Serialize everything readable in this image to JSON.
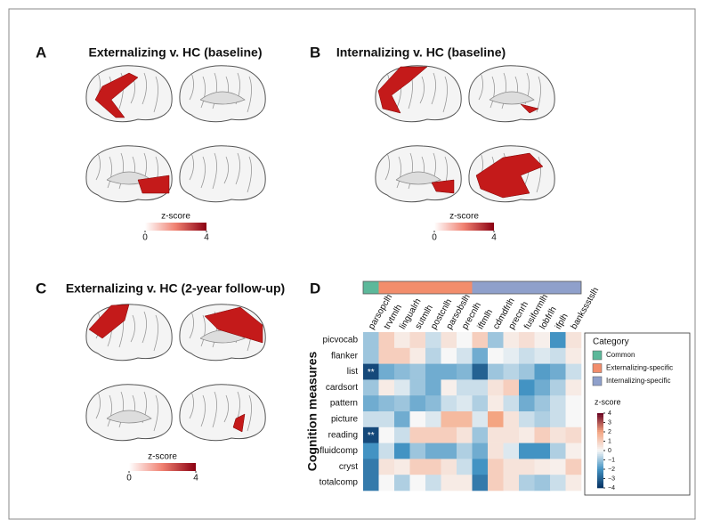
{
  "panels": [
    {
      "label": "A",
      "title": "Externalizing v. HC (baseline)",
      "colorbar": {
        "label": "z-score",
        "ticks": [
          0,
          4
        ]
      }
    },
    {
      "label": "B",
      "title": "Internalizing v. HC (baseline)",
      "colorbar": {
        "label": "z-score",
        "ticks": [
          0,
          4
        ]
      }
    },
    {
      "label": "C",
      "title": "Externalizing v. HC (2-year follow-up)",
      "colorbar": {
        "label": "z-score",
        "ticks": [
          0,
          4
        ]
      }
    }
  ],
  "chart_data": {
    "type": "heatmap",
    "panel_label": "D",
    "ylabel": "Cognition measures",
    "columns": [
      "parsopclh",
      "trvtmlh",
      "lingualrh",
      "sutmlh",
      "postcnlh",
      "parsobslh",
      "precnlh",
      "iftmlh",
      "cdmdfrlh",
      "precnrh",
      "fusiformlh",
      "lobfrlh",
      "ifplh",
      "bankssstslh"
    ],
    "column_categories": [
      "Common",
      "Externalizing-specific",
      "Externalizing-specific",
      "Externalizing-specific",
      "Externalizing-specific",
      "Externalizing-specific",
      "Externalizing-specific",
      "Internalizing-specific",
      "Internalizing-specific",
      "Internalizing-specific",
      "Internalizing-specific",
      "Internalizing-specific",
      "Internalizing-specific",
      "Internalizing-specific"
    ],
    "rows": [
      "picvocab",
      "flanker",
      "list",
      "cardsort",
      "pattern",
      "picture",
      "reading",
      "fluidcomp",
      "cryst",
      "totalcomp"
    ],
    "values": [
      [
        -1,
        1,
        0.3,
        0.7,
        -0.5,
        0.5,
        0,
        1,
        -1,
        0.3,
        0.6,
        0.2,
        -2,
        0.5
      ],
      [
        -1,
        1,
        1,
        0.3,
        -0.7,
        0,
        -0.4,
        -1.5,
        0,
        -0.2,
        -0.5,
        -0.3,
        -0.5,
        0.3
      ],
      [
        -3.5,
        -1.5,
        -1.2,
        -1,
        -1.5,
        -1.5,
        -1.3,
        -3,
        -1,
        -0.7,
        -1,
        -1.8,
        -1.5,
        -0.5
      ],
      [
        -1,
        0.3,
        -0.3,
        -1,
        -1.5,
        0.2,
        -0.5,
        -0.5,
        0.5,
        1,
        -2,
        -1.5,
        -0.8,
        0.3
      ],
      [
        -1.5,
        -1.2,
        -1,
        -1.5,
        -1.2,
        -0.5,
        -0.3,
        -0.8,
        0.3,
        -0.5,
        -1.5,
        -1,
        -0.5,
        0
      ],
      [
        -0.5,
        -0.5,
        -1.5,
        0,
        -0.3,
        1.5,
        1.5,
        -0.3,
        2,
        0.5,
        -0.5,
        -0.8,
        -0.5,
        0
      ],
      [
        -3.5,
        0,
        -0.5,
        1,
        1,
        1,
        0.5,
        -1,
        0.5,
        0.5,
        0.3,
        1,
        0.5,
        0.7
      ],
      [
        -2,
        -0.5,
        -2,
        -1,
        -1.5,
        -1.5,
        -0.8,
        -1.5,
        0.5,
        -0.3,
        -2,
        -2,
        -0.8,
        0.2
      ],
      [
        -2.5,
        0.5,
        0.3,
        1,
        1,
        0.5,
        -0.5,
        -2,
        1,
        0.5,
        0.5,
        0.3,
        0.2,
        1
      ],
      [
        -2.5,
        0,
        -0.8,
        0,
        -0.5,
        0.3,
        0.3,
        -2.5,
        1,
        0.5,
        -0.8,
        -1,
        -0.5,
        0.3
      ]
    ],
    "significance": [
      {
        "row": "list",
        "column": "parsopclh",
        "label": "**"
      },
      {
        "row": "reading",
        "column": "parsopclh",
        "label": "**"
      }
    ],
    "legend": {
      "title": "Category",
      "entries": [
        {
          "name": "Common",
          "color": "#5cb89a"
        },
        {
          "name": "Externalizing-specific",
          "color": "#f28d6c"
        },
        {
          "name": "Internalizing-specific",
          "color": "#8fa0cb"
        }
      ]
    },
    "colorbar_label": "z-score",
    "zlim": [
      -4,
      4
    ],
    "zticks": [
      4,
      3,
      2,
      1,
      0,
      {
        "value": -1,
        "label": "−1"
      },
      {
        "value": -2,
        "label": "−2"
      },
      {
        "value": -3,
        "label": "−3"
      },
      {
        "value": -4,
        "label": "−4"
      }
    ]
  }
}
